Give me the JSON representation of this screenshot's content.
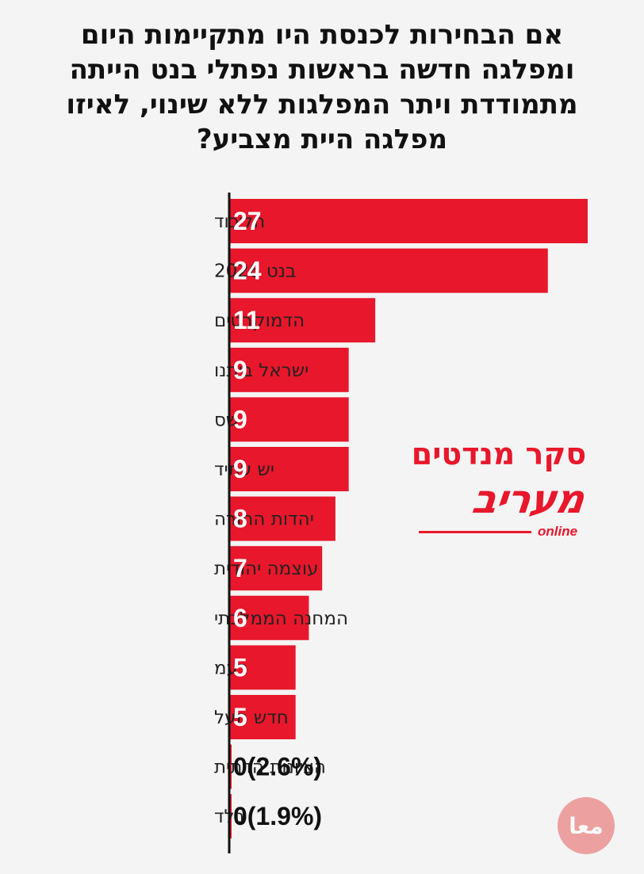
{
  "chart_data": {
    "type": "bar",
    "orientation": "horizontal",
    "title_lines": [
      "אם הבחירות לכנסת היו מתקיימות היום",
      "ומפלגה חדשה בראשות נפתלי בנט הייתה",
      "מתמודדת ויתר המפלגות ללא שינוי, לאיזו",
      "מפלגה היית מצביע?"
    ],
    "categories": [
      "הליכוד",
      "בנט 2026",
      "הדמוקרטים",
      "ישראל ביתנו",
      "שס",
      "יש עתיד",
      "יהדות התורה",
      "עוצמה יהודית",
      "המחנה הממלכתי",
      "רעמ",
      "חדש תעל",
      "הציונות הדתית",
      "בלד"
    ],
    "values": [
      27,
      24,
      11,
      9,
      9,
      9,
      8,
      7,
      6,
      5,
      5,
      0,
      0
    ],
    "value_labels": [
      "27",
      "24",
      "11",
      "9",
      "9",
      "9",
      "8",
      "7",
      "6",
      "5",
      "5",
      "0(2.6%)",
      "0(1.9%)"
    ],
    "bar_color": "#e8172b",
    "grid": false,
    "xlim": [
      0,
      27
    ]
  },
  "brand": {
    "subtitle": "סקר מנדטים",
    "name": "מעריב",
    "tag": "online"
  },
  "watermark": {
    "text": "معا"
  }
}
